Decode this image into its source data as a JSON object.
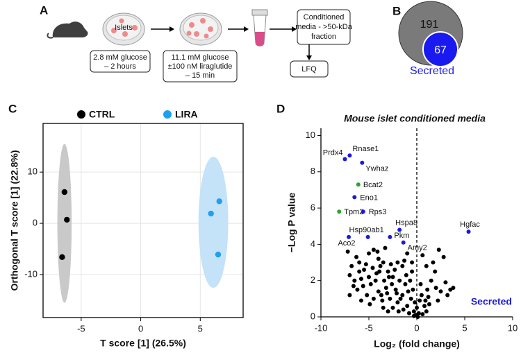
{
  "panel_labels": [
    "A",
    "B",
    "C",
    "D"
  ],
  "diagram": {
    "dish_label": "Islets",
    "step1": [
      "2.8 mM glucose",
      "– 2 hours"
    ],
    "step2": [
      "11.1 mM glucose",
      "±100 nM liraglutide",
      "– 15 min"
    ],
    "step3": [
      "Conditioned",
      "media - >50-kDa",
      "fraction"
    ],
    "step4": "LFQ"
  },
  "venn": {
    "outer": 191,
    "inner": 67,
    "inner_label": "Secreted"
  },
  "chart_data": [
    {
      "type": "scatter",
      "xlabel": "T score [1] (26.5%)",
      "ylabel": "Orthogonal T score [1] (22.8%)",
      "xlim": [
        -8.2,
        8.6
      ],
      "ylim": [
        -18.4,
        19.5
      ],
      "xticks": [
        -5,
        0,
        5
      ],
      "yticks": [
        -10,
        0,
        10
      ],
      "grid": true,
      "frame": "box",
      "legend": "top",
      "series": [
        {
          "name": "CTRL",
          "color": "#000000",
          "x": [
            -6.4,
            -6.2,
            -6.6
          ],
          "values": [
            6.1,
            0.7,
            -6.6
          ],
          "ellipse": {
            "cx": -6.4,
            "cy": 0,
            "rx": 0.6,
            "ry": 15.5,
            "color": "#c9c9c9"
          }
        },
        {
          "name": "LIRA",
          "color": "#1ea0f0",
          "x": [
            6.6,
            5.9,
            6.5
          ],
          "values": [
            4.3,
            1.9,
            -6.1
          ],
          "ellipse": {
            "cx": 6.1,
            "cy": 0.2,
            "rx": 1.25,
            "ry": 12.8,
            "color": "#c4e2f8"
          }
        }
      ]
    },
    {
      "type": "scatter",
      "title": "Mouse islet conditioned media",
      "xlabel": "Log₂ (fold change)",
      "ylabel": "−Log P value",
      "xlim": [
        -10,
        10
      ],
      "ylim": [
        0,
        10.4
      ],
      "xticks": [
        -10,
        -5,
        0,
        5,
        10
      ],
      "yticks": [
        0,
        2,
        4,
        6,
        8,
        10
      ],
      "grid": false,
      "frame": "axes",
      "ref_line_x": 0,
      "legend": "lower right",
      "series": [
        {
          "name": "Secreted",
          "color": "#1a1adc",
          "labels": [
            "Prdx4",
            "Rnase1",
            "Ywhaz",
            "Eno1",
            "Rps3",
            "Hspa8",
            "Hsp90ab1",
            "Pkm",
            "Aco2",
            "Amy2",
            "Hgfac"
          ],
          "x": [
            -7.5,
            -7.0,
            -5.7,
            -6.5,
            -5.6,
            -1.8,
            -5.1,
            -2.8,
            -7.1,
            -1.4,
            5.4
          ],
          "values": [
            8.7,
            8.9,
            8.5,
            6.6,
            5.8,
            4.8,
            4.4,
            4.4,
            4.4,
            4.1,
            4.7
          ]
        },
        {
          "color": "#2aa52a",
          "labels": [
            "Bcat2",
            "Tpm2"
          ],
          "x": [
            -6.1,
            -8.1
          ],
          "values": [
            7.3,
            5.8
          ]
        },
        {
          "color": "#000000",
          "x": [
            -5,
            -4.5,
            -4,
            -3.5,
            -6,
            -5.5,
            -7,
            -6.5,
            -6,
            -5,
            -4.8,
            -4.2,
            -3.8,
            -3,
            -2.5,
            -2,
            -1.5,
            -1,
            -0.5,
            -1.2,
            -2.2,
            -3.2,
            -4,
            -5.2,
            -6.2,
            -7,
            -6.8,
            -6.3,
            -4.5,
            -3.6,
            -2.8,
            -2,
            -1.5,
            -1,
            -0.6,
            -0.3,
            0,
            0.2,
            -0.2,
            0.5,
            0.8,
            1,
            0.3,
            -0.8,
            -1.4,
            -2.5,
            -3,
            -1.8,
            -2.6,
            -3.4,
            -4.6,
            -5.6,
            -5.8,
            -4.3,
            -3.7,
            -2.3,
            -1.1,
            -0.4,
            0.4,
            1.2,
            1.5,
            2,
            2.5,
            3,
            3.5,
            3.8,
            2.8,
            2.3,
            1.7,
            1,
            0.6,
            1.3,
            2.2,
            3.2,
            -0.1,
            0.1,
            -0.3,
            0.6,
            -0.9,
            -1.7,
            -2.9,
            -3.9,
            -5.3,
            -6.6,
            -7.2,
            -4.1,
            -2.1,
            -0.7,
            1.1,
            1.9,
            -1.3,
            -2.7,
            -3.3,
            -5.8,
            -4.9,
            -3.5,
            -1.9,
            0.9,
            -0.5,
            -3.1
          ],
          "values": [
            3.5,
            3.7,
            3.2,
            3.0,
            3.0,
            2.6,
            2.3,
            2.0,
            2.5,
            2.2,
            1.8,
            2.4,
            2.8,
            2.5,
            2.2,
            3.0,
            2.8,
            3.5,
            2.5,
            1.8,
            1.5,
            1.6,
            1.4,
            1.2,
            1.5,
            1.2,
            2.8,
            3.3,
            1.0,
            0.9,
            1.0,
            0.8,
            1.2,
            0.6,
            1.0,
            0.3,
            0.5,
            0.2,
            0.8,
            1.2,
            0.6,
            0.3,
            0.9,
            0.2,
            0.4,
            0.5,
            0.3,
            2.0,
            1.8,
            2.0,
            2.7,
            1.7,
            2.1,
            2.0,
            1.2,
            2.6,
            2.3,
            1.5,
            1.8,
            1.1,
            2.0,
            1.6,
            1.4,
            1.9,
            1.5,
            1.6,
            3.3,
            3.7,
            3.0,
            2.8,
            3.4,
            0.7,
            0.9,
            1.2,
            0.1,
            0,
            0.05,
            0.15,
            1.4,
            1.0,
            2.2,
            2.5,
            2.9,
            1.7,
            3.6,
            3.6,
            1.3,
            2.0,
            1.5,
            2.5,
            3.1,
            2.9,
            3.8,
            0.9,
            0.7,
            0.5,
            0.3,
            0.9,
            3.0,
            1.3
          ]
        }
      ]
    }
  ]
}
